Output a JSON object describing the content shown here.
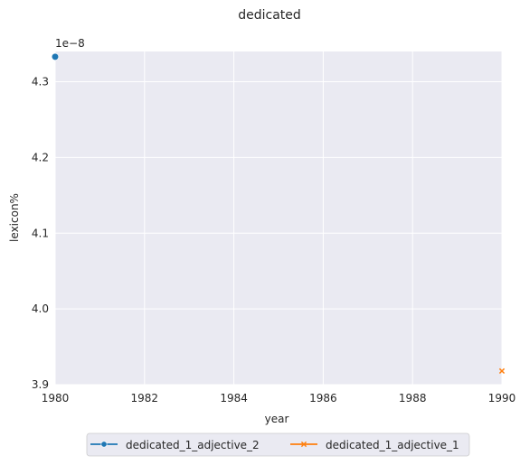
{
  "chart_data": {
    "type": "line",
    "title": "dedicated",
    "xlabel": "year",
    "ylabel": "lexicon%",
    "y_offset_label": "1e−8",
    "xlim": [
      1980,
      1990
    ],
    "ylim": [
      3.9,
      4.34
    ],
    "x_ticks": [
      1980,
      1982,
      1984,
      1986,
      1988,
      1990
    ],
    "y_ticks": [
      3.9,
      4.0,
      4.1,
      4.2,
      4.3
    ],
    "y_tick_labels": [
      "3.9",
      "4.0",
      "4.1",
      "4.2",
      "4.3"
    ],
    "grid": true,
    "legend_position": "bottom-center",
    "series": [
      {
        "name": "dedicated_1_adjective_2",
        "color": "#1f77b4",
        "marker": "circle",
        "points": [
          {
            "x": 1980,
            "y": 4.333
          }
        ]
      },
      {
        "name": "dedicated_1_adjective_1",
        "color": "#ff7f0e",
        "marker": "x",
        "points": [
          {
            "x": 1990,
            "y": 3.918
          }
        ]
      }
    ],
    "colors": {
      "plot_background": "#eaeaf2",
      "grid": "#ffffff",
      "text": "#262626"
    }
  }
}
